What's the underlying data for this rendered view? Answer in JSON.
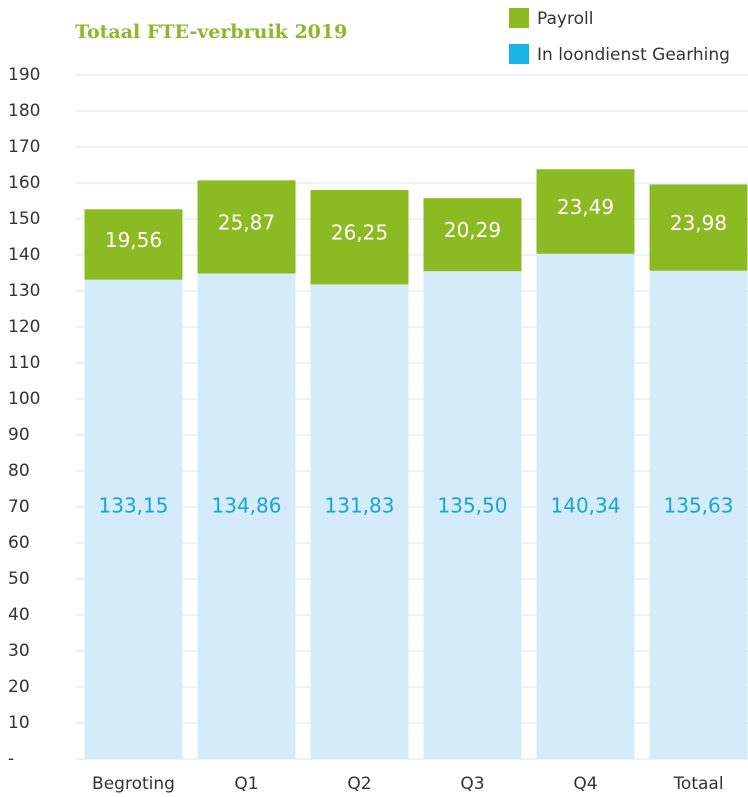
{
  "chart_data": {
    "type": "bar",
    "stacked": true,
    "title": "Totaal FTE-verbruik 2019",
    "categories": [
      "Begroting",
      "Q1",
      "Q2",
      "Q3",
      "Q4",
      "Totaal"
    ],
    "series": [
      {
        "name": "In loondienst Gearhing",
        "color": "#d4ebf9",
        "legend_color": "#19b4e6",
        "label_color": "#1aa3d9",
        "values": [
          133.15,
          134.86,
          131.83,
          135.5,
          140.34,
          135.63
        ],
        "value_labels": [
          "133,15",
          "134,86",
          "131,83",
          "135,50",
          "140,34",
          "135,63"
        ]
      },
      {
        "name": "Payroll",
        "color": "#8cba22",
        "legend_color": "#8cba22",
        "label_color": "#ffffff",
        "values": [
          19.56,
          25.87,
          26.25,
          20.29,
          23.49,
          23.98
        ],
        "value_labels": [
          "19,56",
          "25,87",
          "26,25",
          "20,29",
          "23,49",
          "23,98"
        ]
      }
    ],
    "ylim": [
      0,
      190
    ],
    "yticks": [
      {
        "value": 0,
        "label": "-"
      },
      10,
      20,
      30,
      40,
      50,
      60,
      70,
      80,
      90,
      100,
      110,
      120,
      130,
      140,
      150,
      160,
      170,
      180,
      190
    ],
    "grid": true
  }
}
